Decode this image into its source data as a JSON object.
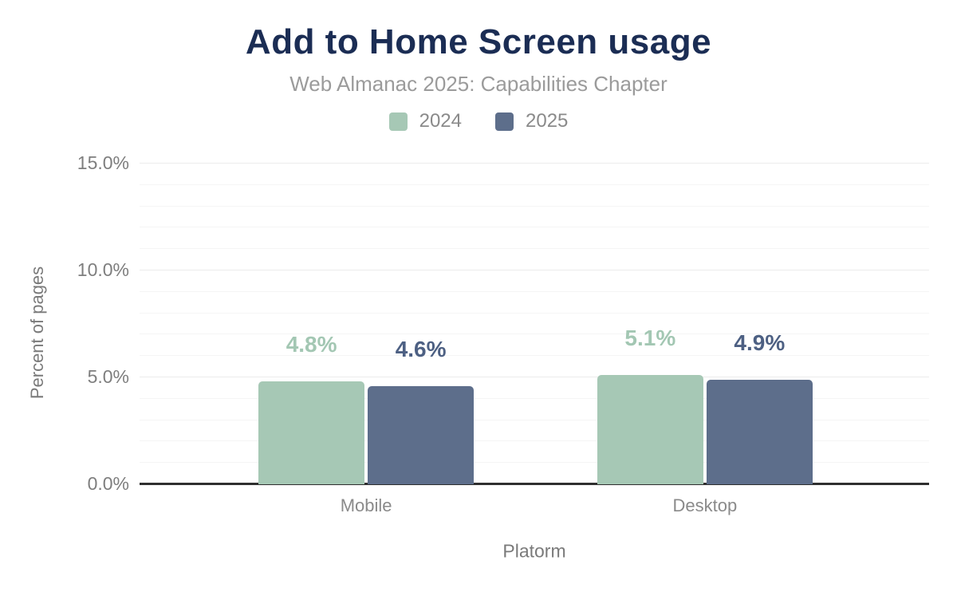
{
  "header": {
    "title": "Add to Home Screen usage",
    "subtitle": "Web Almanac 2025: Capabilities Chapter"
  },
  "legend": {
    "items": [
      {
        "label": "2024",
        "color": "#a6c8b5"
      },
      {
        "label": "2025",
        "color": "#5d6e8b"
      }
    ]
  },
  "chart_data": {
    "type": "bar",
    "title": "Add to Home Screen usage",
    "subtitle": "Web Almanac 2025: Capabilities Chapter",
    "categories": [
      "Mobile",
      "Desktop"
    ],
    "series": [
      {
        "name": "2024",
        "color": "#a6c8b5",
        "label_color": "#a3c7b3",
        "values": [
          4.8,
          5.1
        ],
        "data_labels": [
          "4.8%",
          "5.1%"
        ]
      },
      {
        "name": "2025",
        "color": "#5d6e8b",
        "label_color": "#4d6083",
        "values": [
          4.6,
          4.9
        ],
        "data_labels": [
          "4.6%",
          "4.9%"
        ]
      }
    ],
    "xlabel": "Platorm",
    "ylabel": "Percent of pages",
    "ylim": [
      0,
      15
    ],
    "yticks": [
      {
        "value": 0,
        "label": "0.0%"
      },
      {
        "value": 5,
        "label": "5.0%"
      },
      {
        "value": 10,
        "label": "10.0%"
      },
      {
        "value": 15,
        "label": "15.0%"
      }
    ],
    "minor_grid_step": 1,
    "major_grid_step": 5,
    "grid": "horizontal",
    "legend_position": "top"
  },
  "colors": {
    "background": "#ffffff",
    "title": "#1b2d54",
    "subtitle": "#9b9b9b",
    "legend_text": "#8a8a8a",
    "tick_text": "#7e7e7e",
    "axis_title_text": "#7a7a7a",
    "category_text": "#8a8a8a",
    "baseline": "#2f2f2f",
    "major_grid": "#ececec",
    "minor_grid": "#f5f5f5"
  }
}
